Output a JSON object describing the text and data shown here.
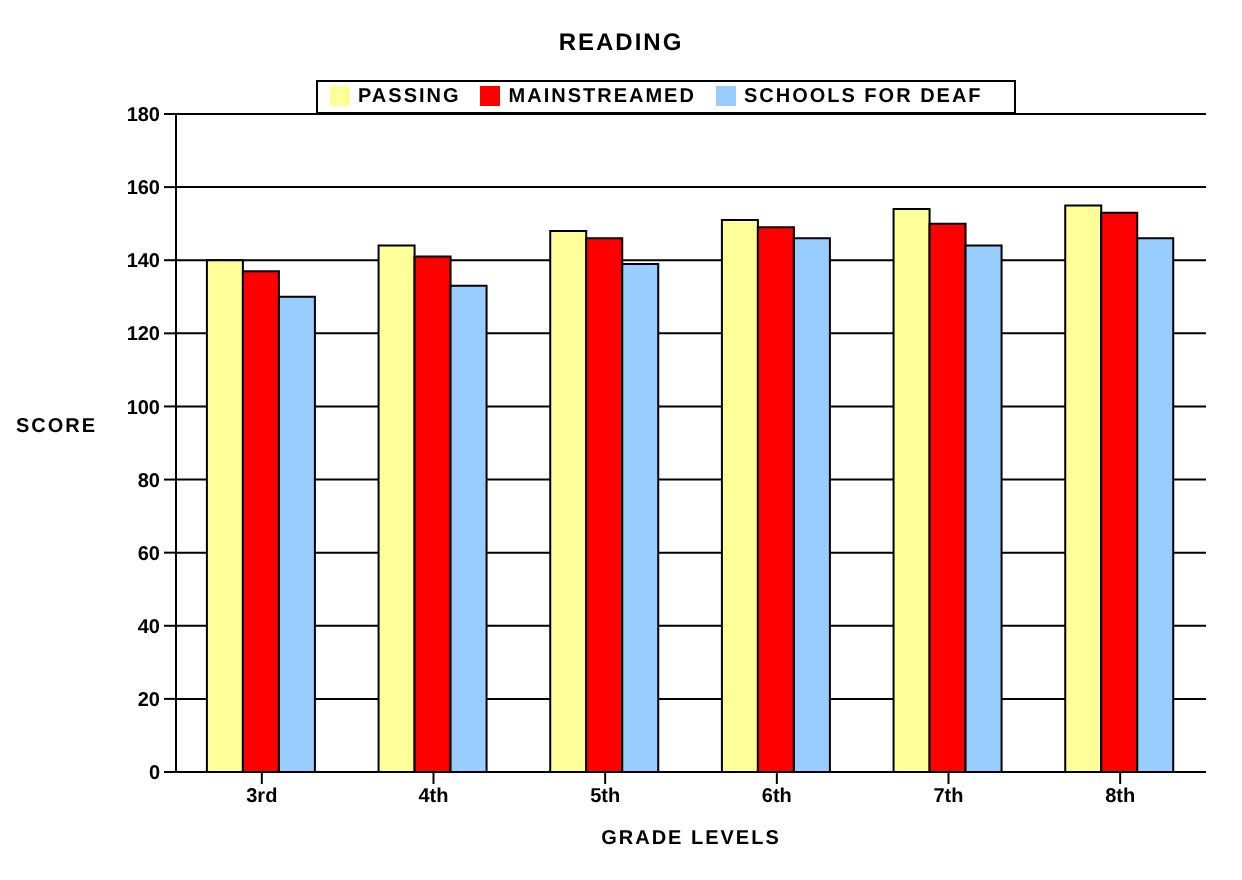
{
  "chart_data": {
    "type": "bar",
    "title": "READING",
    "xlabel": "GRADE LEVELS",
    "ylabel": "SCORE",
    "categories": [
      "3rd",
      "4th",
      "5th",
      "6th",
      "7th",
      "8th"
    ],
    "series": [
      {
        "name": "PASSING",
        "color": "#ffff99",
        "values": [
          140,
          144,
          148,
          151,
          154,
          155
        ]
      },
      {
        "name": "MAINSTREAMED",
        "color": "#ff0000",
        "values": [
          137,
          141,
          146,
          149,
          150,
          153
        ]
      },
      {
        "name": "SCHOOLS FOR DEAF",
        "color": "#99ccff",
        "values": [
          130,
          133,
          139,
          146,
          144,
          146
        ]
      }
    ],
    "ylim": [
      0,
      180
    ],
    "yticks": [
      0,
      20,
      40,
      60,
      80,
      100,
      120,
      140,
      160,
      180
    ],
    "grid": "y",
    "legend": "top"
  }
}
